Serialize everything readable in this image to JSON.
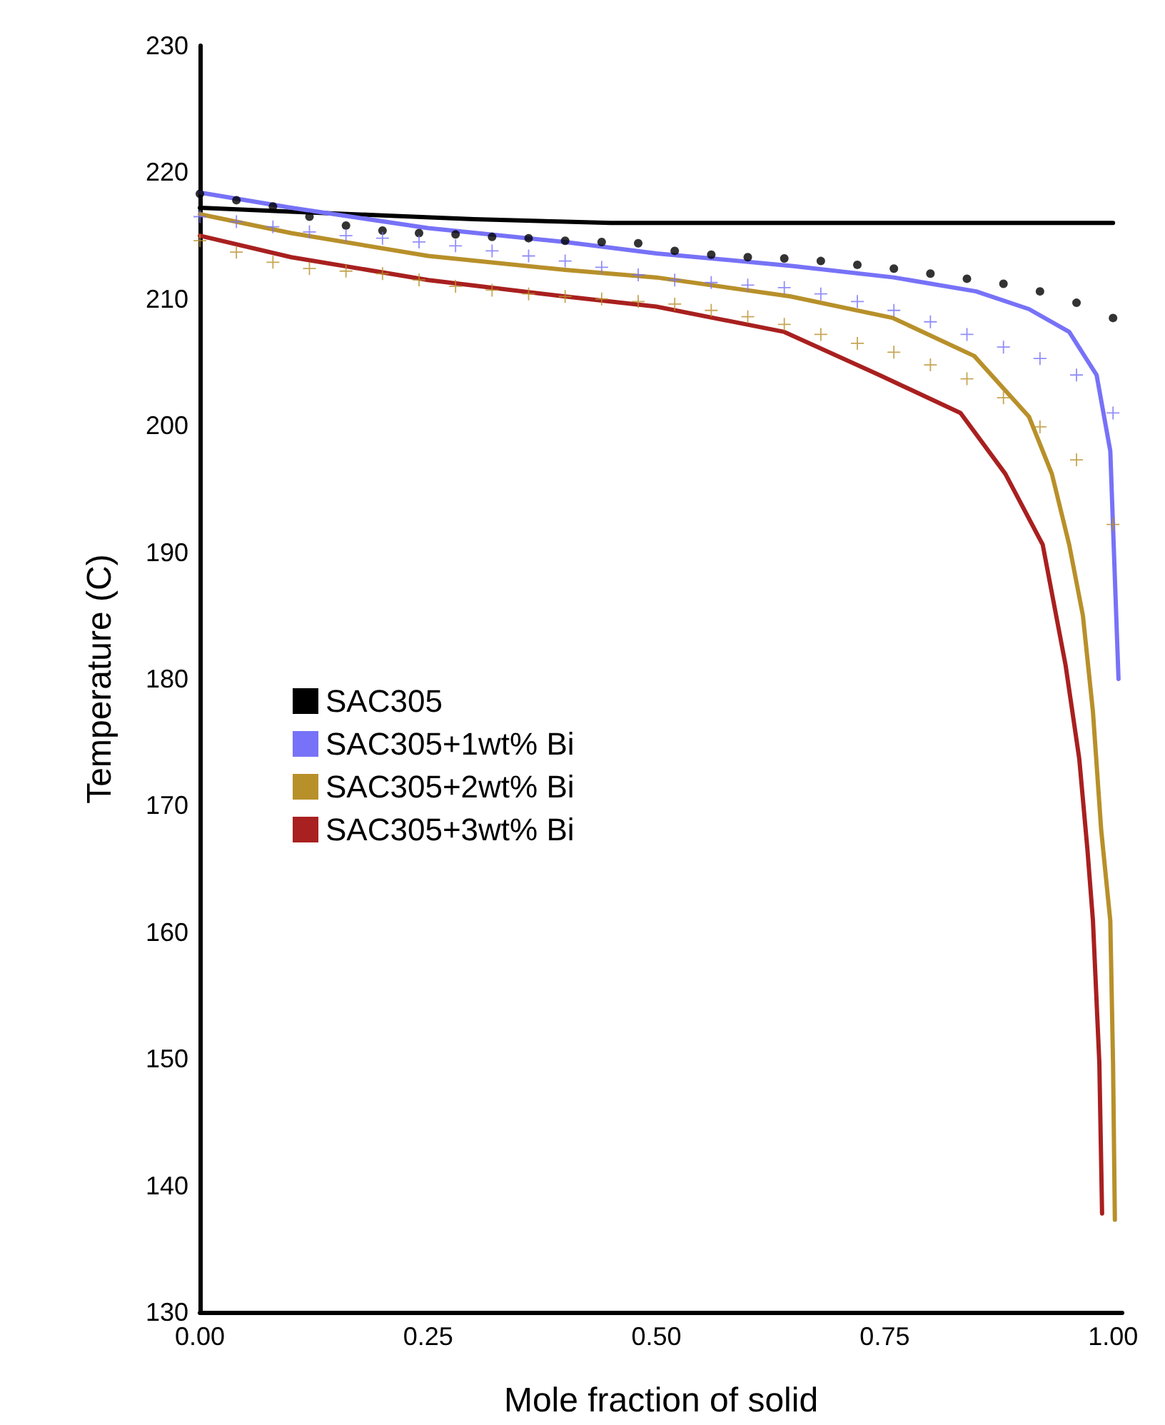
{
  "chart_data": {
    "type": "line",
    "xlabel": "Mole fraction of solid",
    "ylabel": "Temperature (C)",
    "xlim": [
      0,
      1.01
    ],
    "xticks": [
      {
        "value": 0,
        "label": "0.00"
      },
      {
        "value": 0.25,
        "label": "0.25"
      },
      {
        "value": 0.5,
        "label": "0.50"
      },
      {
        "value": 0.75,
        "label": "0.75"
      },
      {
        "value": 1,
        "label": "1.00"
      }
    ],
    "ylim": [
      130,
      230
    ],
    "yticks": [
      130,
      140,
      150,
      160,
      170,
      180,
      190,
      200,
      210,
      220,
      230
    ],
    "grid": false,
    "legend": "left",
    "marker": "none",
    "line_style": "solid",
    "series": [
      {
        "name": "SAC305",
        "color": "#000000",
        "x": [
          0,
          0.1,
          0.2,
          0.3,
          0.4,
          0.45,
          0.6,
          0.8,
          1.0
        ],
        "values": [
          217.2,
          216.9,
          216.6,
          216.3,
          216.1,
          216.0,
          216.0,
          216.0,
          216.0
        ]
      },
      {
        "name": "SAC305+1wt% Bi",
        "color": "#7772f7",
        "x": [
          0,
          0.1,
          0.25,
          0.4,
          0.5,
          0.65,
          0.76,
          0.85,
          0.908,
          0.952,
          0.982,
          0.997,
          1.006
        ],
        "values": [
          218.4,
          217.2,
          215.6,
          214.5,
          213.6,
          212.6,
          211.7,
          210.6,
          209.2,
          207.4,
          204.0,
          198.0,
          180.0
        ]
      },
      {
        "name": "SAC305+2wt% Bi",
        "color": "#b8902a",
        "x": [
          0,
          0.1,
          0.25,
          0.4,
          0.5,
          0.647,
          0.759,
          0.848,
          0.908,
          0.933,
          0.952,
          0.967,
          0.978,
          0.987,
          0.997,
          1.0,
          1.002
        ],
        "values": [
          216.7,
          215.2,
          213.4,
          212.3,
          211.7,
          210.2,
          208.5,
          205.5,
          200.7,
          196.2,
          190.6,
          185.0,
          177.4,
          168.1,
          160.9,
          149.7,
          137.3
        ]
      },
      {
        "name": "SAC305+3wt% Bi",
        "color": "#a8201f",
        "x": [
          0,
          0.1,
          0.25,
          0.4,
          0.5,
          0.64,
          0.744,
          0.833,
          0.882,
          0.923,
          0.948,
          0.963,
          0.972,
          0.978,
          0.985,
          0.988
        ],
        "values": [
          215.0,
          213.3,
          211.5,
          210.2,
          209.4,
          207.4,
          204.0,
          201.0,
          196.2,
          190.6,
          181.1,
          173.7,
          166.5,
          160.9,
          149.7,
          137.8
        ]
      },
      {
        "type": "scatter",
        "marker": "circle",
        "color": "#000000",
        "x": [
          0,
          0.04,
          0.08,
          0.12,
          0.16,
          0.2,
          0.24,
          0.28,
          0.32,
          0.36,
          0.4,
          0.44,
          0.48,
          0.52,
          0.56,
          0.6,
          0.64,
          0.68,
          0.72,
          0.76,
          0.8,
          0.84,
          0.88,
          0.92,
          0.96,
          1.0
        ],
        "values": [
          218.3,
          217.8,
          217.3,
          216.5,
          215.8,
          215.4,
          215.2,
          215.1,
          214.9,
          214.8,
          214.6,
          214.5,
          214.4,
          213.8,
          213.5,
          213.3,
          213.2,
          213.0,
          212.7,
          212.4,
          212.0,
          211.6,
          211.2,
          210.6,
          209.7,
          208.5
        ]
      },
      {
        "type": "scatter",
        "marker": "cross",
        "color": "#7772f7",
        "x": [
          0,
          0.04,
          0.08,
          0.12,
          0.16,
          0.2,
          0.24,
          0.28,
          0.32,
          0.36,
          0.4,
          0.44,
          0.48,
          0.52,
          0.56,
          0.6,
          0.64,
          0.68,
          0.72,
          0.76,
          0.8,
          0.84,
          0.88,
          0.92,
          0.96,
          1.0
        ],
        "values": [
          216.5,
          216.1,
          215.7,
          215.3,
          215.0,
          214.8,
          214.5,
          214.2,
          213.8,
          213.4,
          213.0,
          212.5,
          211.9,
          211.5,
          211.3,
          211.1,
          210.9,
          210.4,
          209.8,
          209.1,
          208.2,
          207.2,
          206.2,
          205.3,
          204.0,
          201.0
        ]
      },
      {
        "type": "scatter",
        "marker": "cross",
        "color": "#b8902a",
        "x": [
          0,
          0.04,
          0.08,
          0.12,
          0.16,
          0.2,
          0.24,
          0.28,
          0.32,
          0.36,
          0.4,
          0.44,
          0.48,
          0.52,
          0.56,
          0.6,
          0.64,
          0.68,
          0.72,
          0.76,
          0.8,
          0.84,
          0.88,
          0.92,
          0.96,
          1.0
        ],
        "values": [
          214.6,
          213.7,
          212.9,
          212.4,
          212.2,
          212.0,
          211.5,
          211.0,
          210.7,
          210.4,
          210.2,
          210.0,
          209.8,
          209.6,
          209.1,
          208.6,
          208.0,
          207.2,
          206.5,
          205.8,
          204.8,
          203.7,
          202.2,
          199.9,
          197.3,
          192.2
        ]
      }
    ]
  }
}
